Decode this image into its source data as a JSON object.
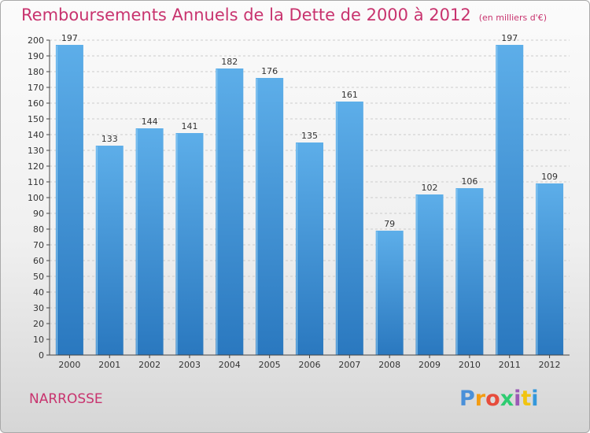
{
  "header": {
    "title": "Remboursements Annuels de la Dette de 2000 à 2012",
    "subtitle": "(en milliers d'€)"
  },
  "footer": {
    "commune": "NARROSSE",
    "logo_letters": [
      "P",
      "r",
      "o",
      "x",
      "i",
      "t",
      "i"
    ],
    "logo_colors": [
      "#4a90d9",
      "#f39c12",
      "#e74c3c",
      "#2ecc71",
      "#9b59b6",
      "#f1c40f",
      "#3498db"
    ]
  },
  "colors": {
    "accent": "#c8336e",
    "bar_light": "#5aaae6",
    "bar_dark": "#2a78bf",
    "grid": "#cccccc"
  },
  "chart_data": {
    "type": "bar",
    "categories": [
      "2000",
      "2001",
      "2002",
      "2003",
      "2004",
      "2005",
      "2006",
      "2007",
      "2008",
      "2009",
      "2010",
      "2011",
      "2012"
    ],
    "values": [
      197,
      133,
      144,
      141,
      182,
      176,
      135,
      161,
      79,
      102,
      106,
      197,
      109
    ],
    "ylim": [
      0,
      200
    ],
    "ytick_step": 10,
    "grid": true,
    "grid_style": "dashed",
    "data_labels": true
  }
}
